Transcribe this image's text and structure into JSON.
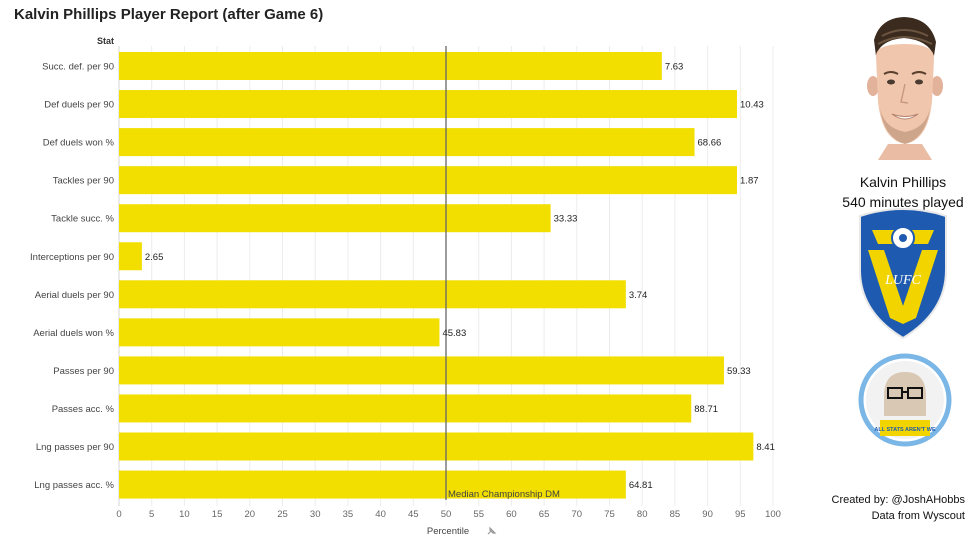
{
  "title": "Kalvin Phillips Player Report (after Game 6)",
  "column_header": "Stat",
  "player": {
    "name": "Kalvin Phillips",
    "minutes": "540 minutes played"
  },
  "credits": {
    "created": "Created by: @JoshAHobbs",
    "source": "Data from Wyscout"
  },
  "colors": {
    "bar": "#F2DF00",
    "median_line": "#666666",
    "club_blue": "#1E5BB0",
    "club_yellow": "#F2D500"
  },
  "crest_letters": "LUFC",
  "badge_text": "ALL STATS AREN'T WE",
  "chart_data": {
    "type": "bar",
    "orientation": "horizontal",
    "xlabel": "Percentile",
    "xlim": [
      0,
      100
    ],
    "xticks": [
      0,
      5,
      10,
      15,
      20,
      25,
      30,
      35,
      40,
      45,
      50,
      55,
      60,
      65,
      70,
      75,
      80,
      85,
      90,
      95,
      100
    ],
    "grid": true,
    "median": {
      "value": 50,
      "label": "Median Championship DM"
    },
    "categories": [
      "Succ. def. per 90",
      "Def duels per 90",
      "Def duels won %",
      "Tackles per 90",
      "Tackle succ. %",
      "Interceptions per 90",
      "Aerial duels per 90",
      "Aerial duels won %",
      "Passes per 90",
      "Passes acc. %",
      "Lng passes per 90",
      "Lng passes acc. %"
    ],
    "values": [
      83,
      94.5,
      88,
      94.5,
      66,
      3.5,
      77.5,
      49,
      92.5,
      87.5,
      97,
      77.5
    ],
    "labels": [
      "7.63",
      "10.43",
      "68.66",
      "1.87",
      "33.33",
      "2.65",
      "3.74",
      "45.83",
      "59.33",
      "88.71",
      "8.41",
      "64.81"
    ]
  }
}
